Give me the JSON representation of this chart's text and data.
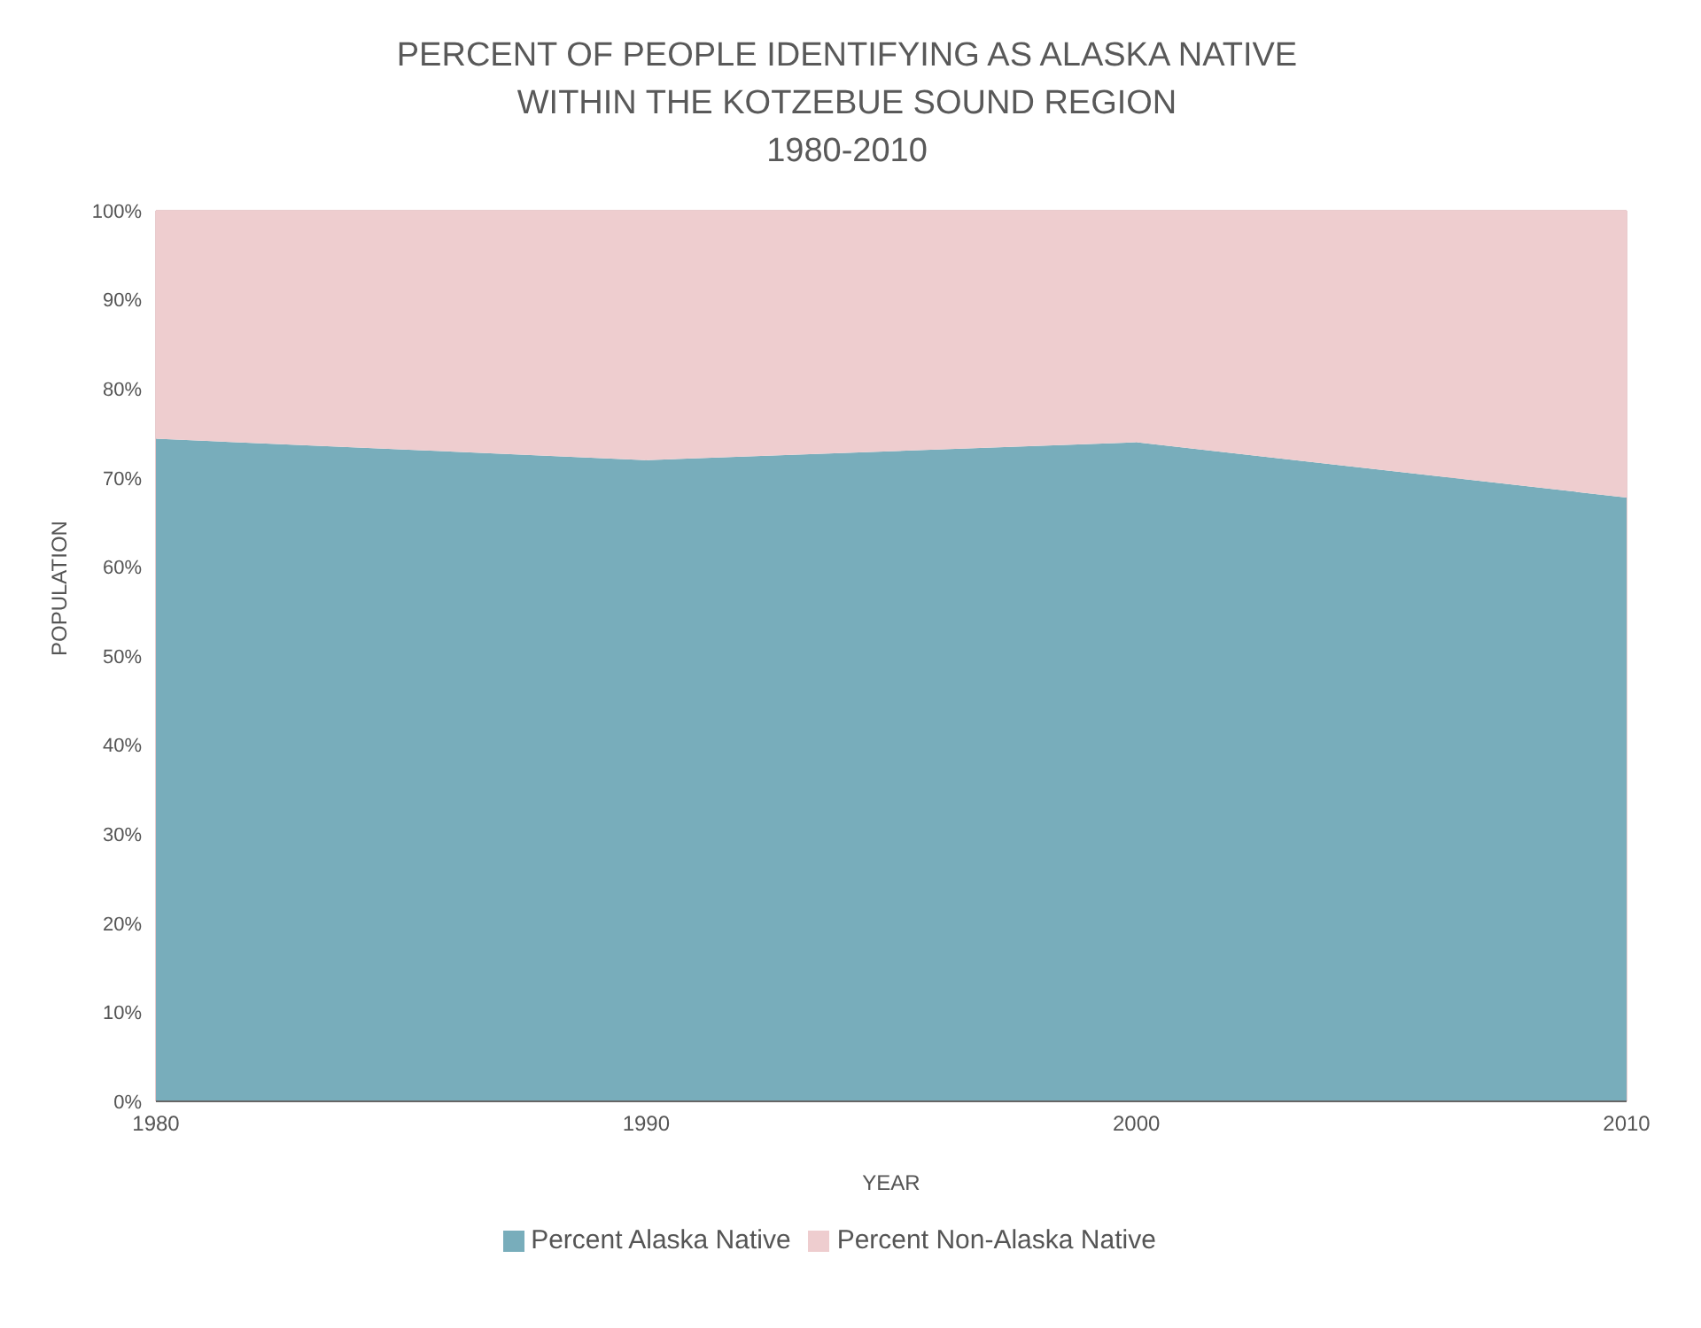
{
  "chart_data": {
    "type": "area",
    "stacked": true,
    "title": "PERCENT OF PEOPLE IDENTIFYING AS ALASKA NATIVE\nWITHIN THE KOTZEBUE SOUND REGION\n1980-2010",
    "xlabel": "YEAR",
    "ylabel": "POPULATION",
    "categories": [
      "1980",
      "1990",
      "2000",
      "2010"
    ],
    "series": [
      {
        "name": "Percent Alaska Native",
        "color": "#78adbb",
        "values": [
          74.4,
          72,
          74,
          67.8
        ]
      },
      {
        "name": "Percent Non-Alaska Native",
        "color": "#eecdcf",
        "values": [
          25.6,
          28,
          26,
          32.2
        ]
      }
    ],
    "ylim": [
      0,
      100
    ],
    "yticks": [
      {
        "value": 0,
        "label": "0%"
      },
      {
        "value": 10,
        "label": "10%"
      },
      {
        "value": 20,
        "label": "20%"
      },
      {
        "value": 30,
        "label": "30%"
      },
      {
        "value": 40,
        "label": "40%"
      },
      {
        "value": 50,
        "label": "50%"
      },
      {
        "value": 60,
        "label": "60%"
      },
      {
        "value": 70,
        "label": "70%"
      },
      {
        "value": 80,
        "label": "80%"
      },
      {
        "value": 90,
        "label": "90%"
      },
      {
        "value": 100,
        "label": "100%"
      }
    ],
    "grid": true,
    "legend": "bottom"
  }
}
